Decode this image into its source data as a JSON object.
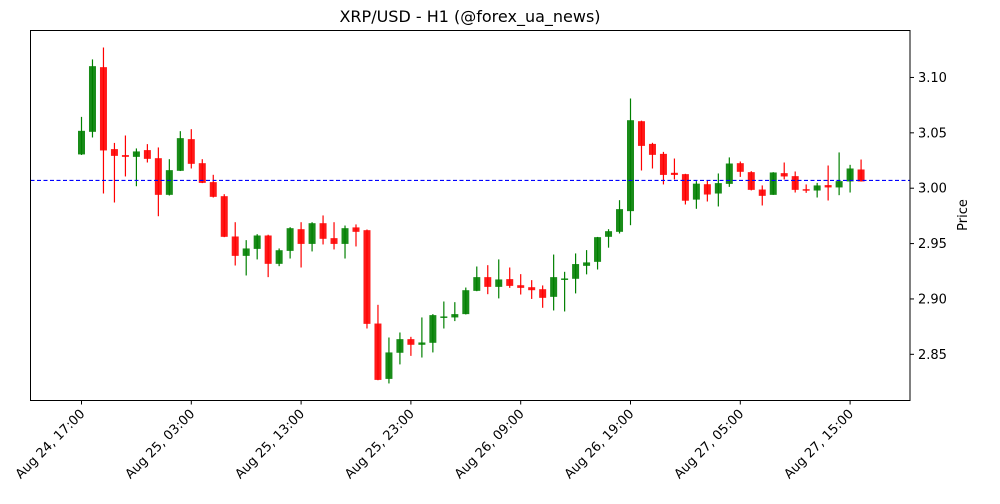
{
  "chart_data": {
    "type": "candlestick",
    "title": "XRP/USD - H1 (@forex_ua_news)",
    "xlabel": "",
    "ylabel": "Price",
    "y_axis_side": "right",
    "ylim": [
      2.8083,
      3.1424
    ],
    "grid": false,
    "legend": null,
    "y_ticks": [
      2.85,
      2.9,
      2.95,
      3.0,
      3.05,
      3.1
    ],
    "y_tick_labels": [
      "2.85",
      "2.90",
      "2.95",
      "3.00",
      "3.05",
      "3.10"
    ],
    "x_tick_indices": [
      0,
      10,
      20,
      30,
      40,
      50,
      60,
      70
    ],
    "x_tick_labels": [
      "Aug 24, 17:00",
      "Aug 25, 03:00",
      "Aug 25, 13:00",
      "Aug 25, 23:00",
      "Aug 26, 09:00",
      "Aug 26, 19:00",
      "Aug 27, 05:00",
      "Aug 27, 15:00"
    ],
    "reference_line": {
      "value": 3.007,
      "color": "#0000ff",
      "style": "dashed"
    },
    "colors": {
      "up": "#008000",
      "down": "#ff0000"
    },
    "start_time": "Aug 24, 17:00",
    "interval": "1h",
    "ohlc": [
      [
        3.0305,
        3.0644,
        3.03,
        3.0518
      ],
      [
        3.0509,
        3.1163,
        3.0458,
        3.1102
      ],
      [
        3.1093,
        3.1271,
        2.9952,
        3.0341
      ],
      [
        3.0353,
        3.0409,
        2.9871,
        3.0292
      ],
      [
        3.0299,
        3.0476,
        3.0106,
        3.0283
      ],
      [
        3.0283,
        3.0359,
        3.0018,
        3.0332
      ],
      [
        3.0344,
        3.0398,
        3.0232,
        3.0265
      ],
      [
        3.0271,
        3.0368,
        2.9747,
        2.994
      ],
      [
        2.994,
        3.0262,
        2.9934,
        3.0163
      ],
      [
        3.0157,
        3.0515,
        3.0155,
        3.0452
      ],
      [
        3.0443,
        3.0533,
        3.0178,
        3.022
      ],
      [
        3.0226,
        3.0262,
        3.0046,
        3.0048
      ],
      [
        3.0055,
        3.0121,
        2.9916,
        2.9922
      ],
      [
        2.9928,
        2.9946,
        2.9558,
        2.9561
      ],
      [
        2.9564,
        2.9693,
        2.9302,
        2.9389
      ],
      [
        2.9389,
        2.9531,
        2.9212,
        2.9456
      ],
      [
        2.9452,
        2.9585,
        2.9357,
        2.9573
      ],
      [
        2.9573,
        2.958,
        2.9197,
        2.9317
      ],
      [
        2.9317,
        2.9456,
        2.9296,
        2.944
      ],
      [
        2.9434,
        2.9648,
        2.9365,
        2.9639
      ],
      [
        2.963,
        2.9693,
        2.9284,
        2.9497
      ],
      [
        2.9497,
        2.9693,
        2.9429,
        2.9684
      ],
      [
        2.9684,
        2.9754,
        2.9492,
        2.9543
      ],
      [
        2.9549,
        2.9693,
        2.9447,
        2.9497
      ],
      [
        2.9497,
        2.9663,
        2.9365,
        2.9639
      ],
      [
        2.9646,
        2.9673,
        2.9474,
        2.9606
      ],
      [
        2.9621,
        2.9627,
        2.8733,
        2.8775
      ],
      [
        2.8778,
        2.8947,
        2.8266,
        2.8269
      ],
      [
        2.8278,
        2.8652,
        2.8237,
        2.8517
      ],
      [
        2.8514,
        2.8697,
        2.8409,
        2.8637
      ],
      [
        2.8637,
        2.8658,
        2.8486,
        2.8586
      ],
      [
        2.8586,
        2.8833,
        2.8471,
        2.8607
      ],
      [
        2.8604,
        2.8863,
        2.8517,
        2.8854
      ],
      [
        2.8836,
        2.8977,
        2.8733,
        2.8842
      ],
      [
        2.8833,
        2.8971,
        2.88,
        2.8863
      ],
      [
        2.8863,
        2.9103,
        2.886,
        2.9079
      ],
      [
        2.9073,
        2.9293,
        2.907,
        2.9197
      ],
      [
        2.9197,
        2.9305,
        2.9043,
        2.9109
      ],
      [
        2.9109,
        2.9357,
        2.9005,
        2.9176
      ],
      [
        2.9179,
        2.9284,
        2.91,
        2.9118
      ],
      [
        2.9124,
        2.9224,
        2.904,
        2.91
      ],
      [
        2.9106,
        2.917,
        2.9,
        2.9079
      ],
      [
        2.9088,
        2.9122,
        2.892,
        2.901
      ],
      [
        2.9019,
        2.9401,
        2.8896,
        2.9197
      ],
      [
        2.9173,
        2.9245,
        2.8887,
        2.9185
      ],
      [
        2.9182,
        2.9411,
        2.905,
        2.9315
      ],
      [
        2.9299,
        2.9441,
        2.9222,
        2.933
      ],
      [
        2.9335,
        2.956,
        2.9266,
        2.9558
      ],
      [
        2.9561,
        2.963,
        2.9463,
        2.9612
      ],
      [
        2.9606,
        2.9892,
        2.9591,
        2.9811
      ],
      [
        2.9793,
        3.081,
        2.9666,
        3.0614
      ],
      [
        3.0605,
        3.061,
        3.016,
        3.0382
      ],
      [
        3.04,
        3.041,
        3.0178,
        3.0301
      ],
      [
        3.031,
        3.0328,
        3.0034,
        3.012
      ],
      [
        3.0139,
        3.0268,
        3.0079,
        3.012
      ],
      [
        3.0127,
        3.013,
        2.9853,
        2.9887
      ],
      [
        2.9897,
        3.0064,
        2.9814,
        3.0041
      ],
      [
        3.0036,
        3.0073,
        2.988,
        2.9943
      ],
      [
        2.9952,
        3.0133,
        2.9835,
        3.0046
      ],
      [
        3.0039,
        3.0278,
        3.0012,
        3.0223
      ],
      [
        3.0226,
        3.0241,
        3.0102,
        3.0148
      ],
      [
        3.0145,
        3.0154,
        2.998,
        2.9985
      ],
      [
        2.9988,
        3.0025,
        2.9844,
        2.9931
      ],
      [
        2.994,
        3.0145,
        2.994,
        3.0142
      ],
      [
        3.0136,
        3.0232,
        3.0079,
        3.0106
      ],
      [
        3.0109,
        3.0151,
        2.9961,
        2.9985
      ],
      [
        2.9991,
        3.0034,
        2.9958,
        2.9988
      ],
      [
        2.9979,
        3.0048,
        2.9916,
        3.0025
      ],
      [
        3.0028,
        3.0205,
        2.9889,
        3.0007
      ],
      [
        3.0007,
        3.0323,
        2.9937,
        3.0064
      ],
      [
        3.0061,
        3.0211,
        2.9961,
        3.0178
      ],
      [
        3.0169,
        3.0259,
        3.006,
        3.0061
      ]
    ]
  }
}
